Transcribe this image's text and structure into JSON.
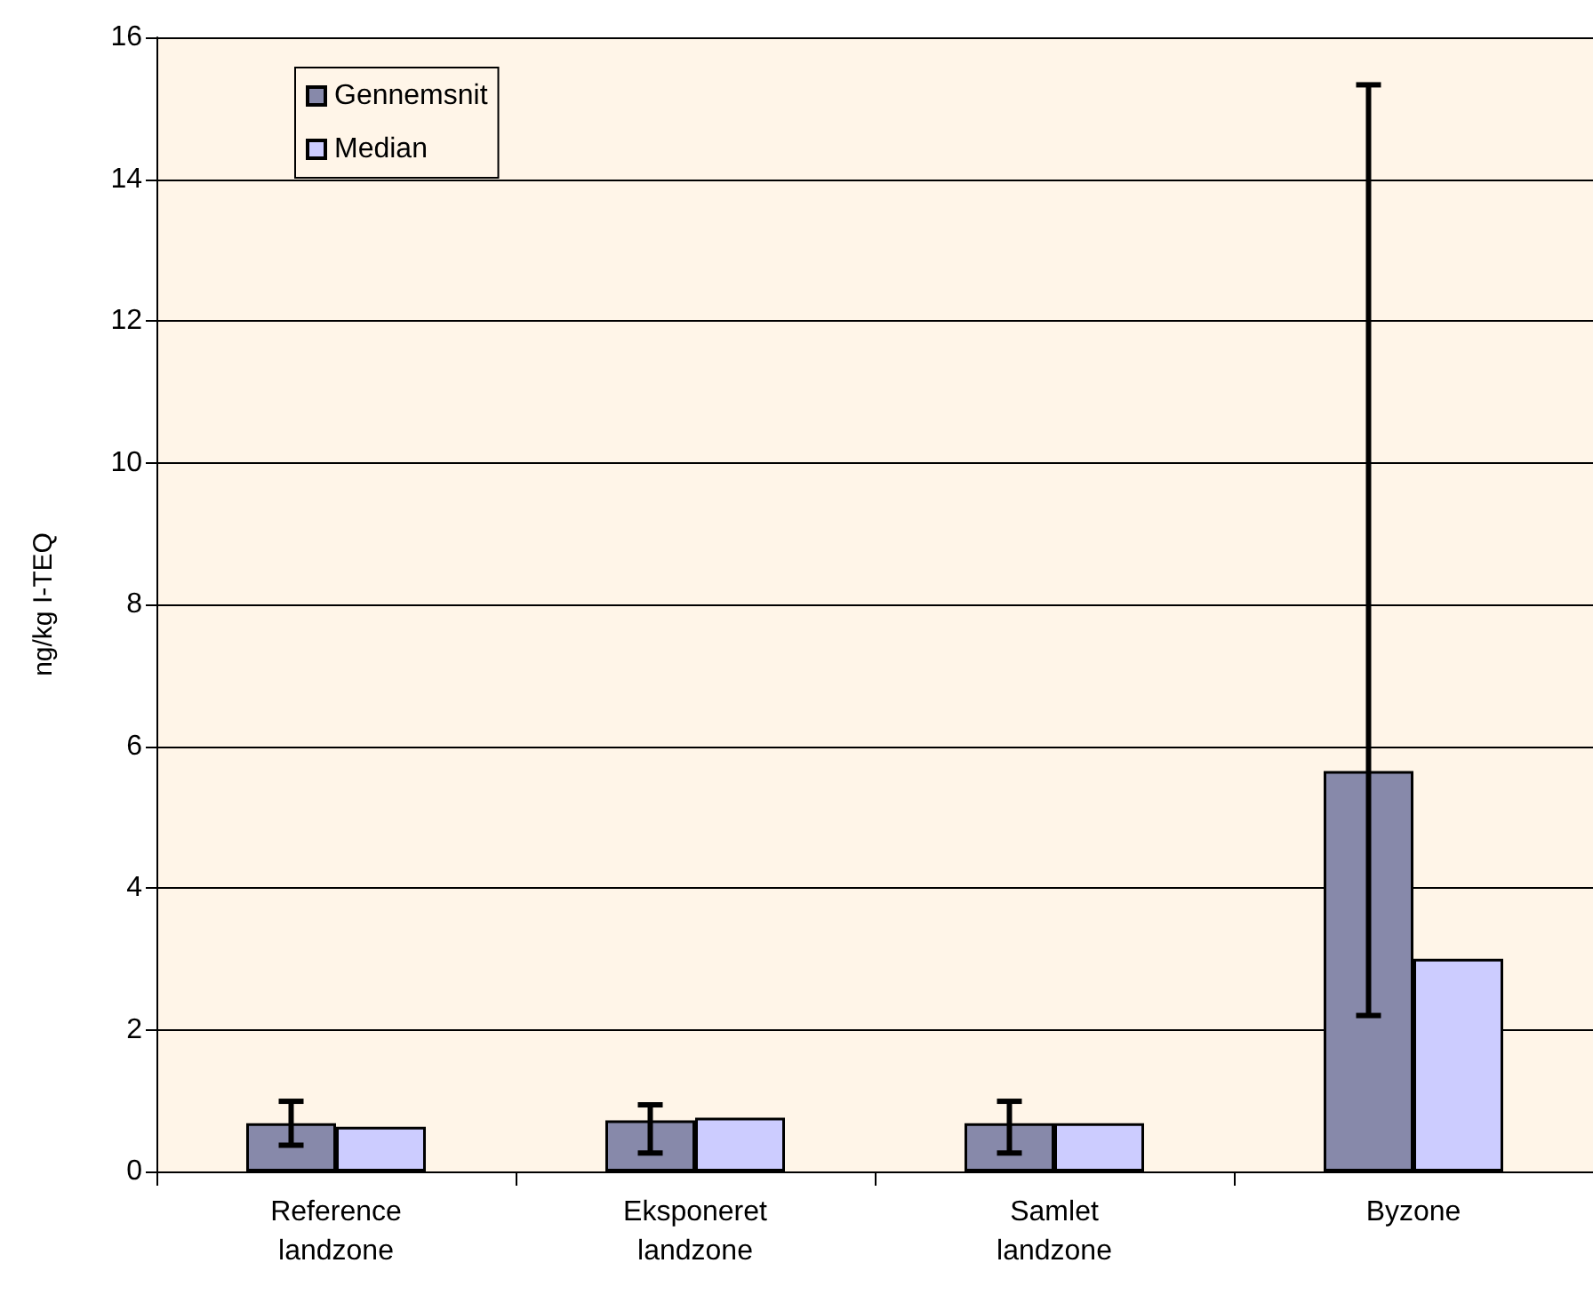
{
  "chart_data": {
    "type": "bar",
    "ylabel": "ng/kg I-TEQ",
    "categories": [
      "Reference\nlandzone",
      "Eksponeret\nlandzone",
      "Samlet\nlandzone",
      "Byzone"
    ],
    "series": [
      {
        "name": "Gennemsnit",
        "color": "#8789aa",
        "values": [
          0.68,
          0.72,
          0.68,
          5.65
        ],
        "errors": [
          [
            0.37,
            0.99
          ],
          [
            0.26,
            0.94
          ],
          [
            0.26,
            0.99
          ],
          [
            2.2,
            15.33
          ]
        ]
      },
      {
        "name": "Median",
        "color": "#ccccff",
        "values": [
          0.63,
          0.76,
          0.68,
          3.0
        ]
      }
    ],
    "ylim": [
      0,
      16
    ],
    "yticks": [
      0,
      2,
      4,
      6,
      8,
      10,
      12,
      14,
      16
    ],
    "grid": "y",
    "legend": "top left"
  }
}
